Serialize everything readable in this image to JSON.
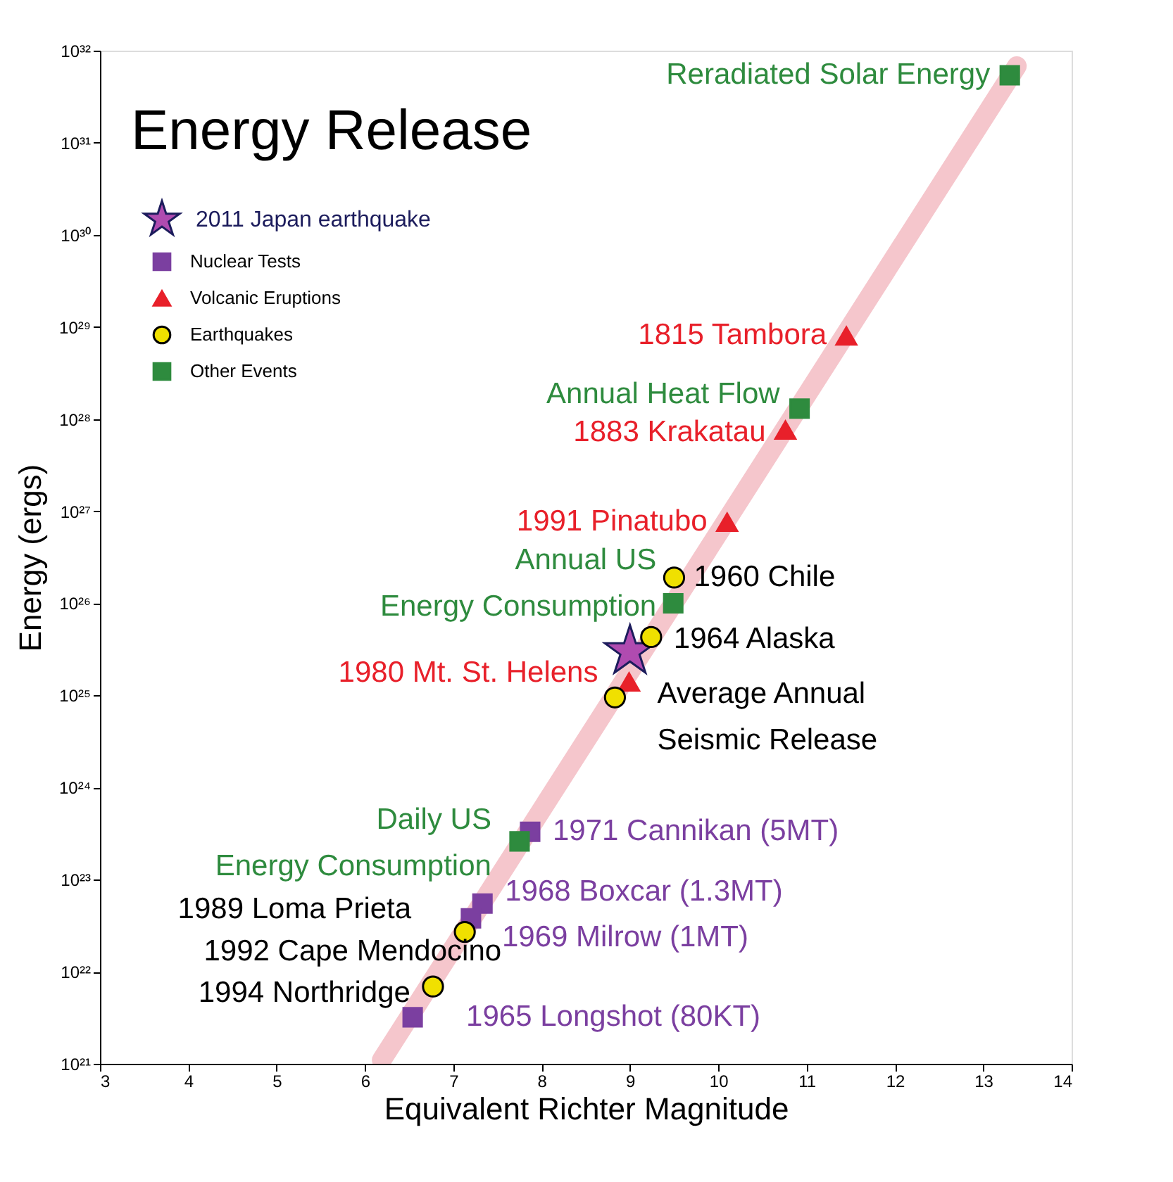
{
  "chart_data": {
    "type": "scatter",
    "title": "Energy Release",
    "xlabel": "Equivalent Richter Magnitude",
    "ylabel": "Energy (ergs)",
    "log": "y",
    "grid": false,
    "legend": "top left",
    "xlim": [
      3,
      14
    ],
    "xticks": [
      3,
      4,
      5,
      6,
      7,
      8,
      9,
      10,
      11,
      12,
      13,
      14
    ],
    "ylim": [
      1e+21,
      1e+32
    ],
    "yticks": [
      {
        "value": 1e+21,
        "label": "10²¹"
      },
      {
        "value": 1e+22,
        "label": "10²²"
      },
      {
        "value": 1e+23,
        "label": "10²³"
      },
      {
        "value": 1e+24,
        "label": "10²⁴"
      },
      {
        "value": 1e+25,
        "label": "10²⁵"
      },
      {
        "value": 1e+26,
        "label": "10²⁶"
      },
      {
        "value": 1e+27,
        "label": "10²⁷"
      },
      {
        "value": 1e+28,
        "label": "10²⁸"
      },
      {
        "value": 1e+29,
        "label": "10²⁹"
      },
      {
        "value": 1e+30,
        "label": "10³⁰"
      },
      {
        "value": 1e+31,
        "label": "10³¹"
      },
      {
        "value": 1e+32,
        "label": "10³²"
      }
    ],
    "series": [
      {
        "type": "line",
        "color": "#f5c6cc",
        "x": [
          6.19,
          13.38
        ],
        "values": [
          1.1e+21,
          6.8e+31
        ]
      },
      {
        "name": "2011 Japan earthquake",
        "marker": "star",
        "color": "#b04bb0",
        "x": [
          9.0
        ],
        "values": [
          3e+25
        ]
      },
      {
        "name": "Nuclear Tests",
        "marker": "square",
        "color": "#7b3fa0",
        "x": [
          7.87,
          7.33,
          7.2,
          6.54
        ],
        "values": [
          3.3e+23,
          5.5e+22,
          3.8e+22,
          3.2e+21
        ]
      },
      {
        "name": "Volcanic Eruptions",
        "marker": "triangle",
        "color": "#e8202a",
        "x": [
          11.45,
          10.76,
          10.1,
          8.99
        ],
        "values": [
          8e+28,
          7.6e+27,
          7.6e+26,
          1.4e+25
        ]
      },
      {
        "name": "Earthquakes",
        "marker": "circle",
        "color": "#f0e000",
        "x": [
          9.5,
          9.24,
          8.83,
          7.13,
          6.77
        ],
        "values": [
          1.9e+26,
          4.3e+25,
          9.5e+24,
          2.7e+22,
          6.9e+21
        ]
      },
      {
        "name": "Other Events",
        "marker": "square",
        "color": "#2e8b3e",
        "x": [
          13.3,
          10.92,
          9.49,
          7.75
        ],
        "values": [
          5.4e+31,
          1.3e+28,
          1e+26,
          2.6e+23
        ]
      }
    ],
    "annotations": [
      {
        "text": "Reradiated Solar Energy",
        "x": 13.3,
        "y": 5.4e+31
      },
      {
        "text": "1815 Tambora",
        "x": 11.45,
        "y": 8e+28
      },
      {
        "text": "Annual Heat Flow",
        "x": 10.92,
        "y": 1.3e+28
      },
      {
        "text": "1883 Krakatau",
        "x": 10.76,
        "y": 7.6e+27
      },
      {
        "text": "1991 Pinatubo",
        "x": 10.1,
        "y": 7.6e+26
      },
      {
        "text": "1960 Chile",
        "x": 9.5,
        "y": 1.9e+26
      },
      {
        "text": "Annual US\nEnergy Consumption",
        "x": 9.49,
        "y": 1e+26
      },
      {
        "text": "1964 Alaska",
        "x": 9.24,
        "y": 4.3e+25
      },
      {
        "text": "1980 Mt. St. Helens",
        "x": 8.99,
        "y": 1.4e+25
      },
      {
        "text": "Average Annual\nSeismic Release",
        "x": 8.83,
        "y": 9.5e+24
      },
      {
        "text": "Daily US\nEnergy Consumption",
        "x": 7.75,
        "y": 2.6e+23
      },
      {
        "text": "1971 Cannikan (5MT)",
        "x": 7.87,
        "y": 3.3e+23
      },
      {
        "text": "1968 Boxcar (1.3MT)",
        "x": 7.33,
        "y": 5.5e+22
      },
      {
        "text": "1969 Milrow (1MT)",
        "x": 7.2,
        "y": 3.8e+22
      },
      {
        "text": "1989 Loma Prieta",
        "x": 7.13,
        "y": 2.7e+22
      },
      {
        "text": "1992 Cape Mendocino",
        "x": 7.13,
        "y": 2.7e+22
      },
      {
        "text": "1994 Northridge",
        "x": 6.77,
        "y": 6.9e+21
      },
      {
        "text": "1965 Longshot (80KT)",
        "x": 6.54,
        "y": 3.2e+21
      }
    ]
  }
}
